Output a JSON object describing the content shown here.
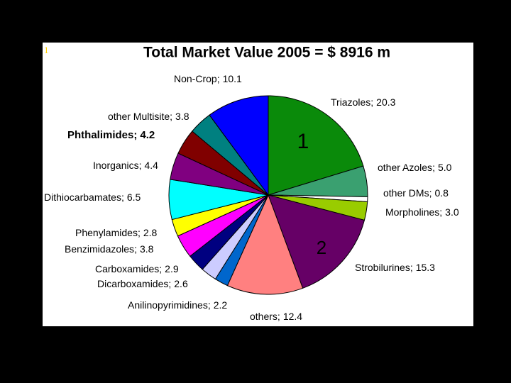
{
  "chart_data": {
    "type": "pie",
    "title": "Total Market Value 2005 = $ 8916 m",
    "slide_number": "1",
    "label_separator": ";",
    "categories": [
      "Triazoles",
      "other Azoles",
      "other DMs",
      "Morpholines",
      "Strobilurines",
      "others",
      "Anilinopyrimidines",
      "Dicarboxamides",
      "Carboxamides",
      "Benzimidazoles",
      "Phenylamides",
      "Dithiocarbamates",
      "Inorganics",
      "Phthalimides",
      "other Multisite",
      "Non-Crop"
    ],
    "values": [
      20.3,
      5.0,
      0.8,
      3.0,
      15.3,
      12.4,
      2.2,
      2.6,
      2.9,
      3.8,
      2.8,
      6.5,
      4.4,
      4.2,
      3.8,
      10.1
    ],
    "value_labels": [
      "20.3",
      "5.0",
      "0.8",
      "3.0",
      "15.3",
      "12.4",
      "2.2",
      "2.6",
      "2.9",
      "3.8",
      "2.8",
      "6.5",
      "4.4",
      "4.2",
      "3.8",
      "10.1"
    ],
    "colors": [
      "#0a8a0a",
      "#3aa070",
      "#ffffff",
      "#99cc00",
      "#660066",
      "#ff8080",
      "#0066cc",
      "#ccccff",
      "#000080",
      "#ff00ff",
      "#ffff00",
      "#00ffff",
      "#800080",
      "#800000",
      "#008080",
      "#0000ff"
    ],
    "annotations": [
      "1",
      "2"
    ]
  }
}
